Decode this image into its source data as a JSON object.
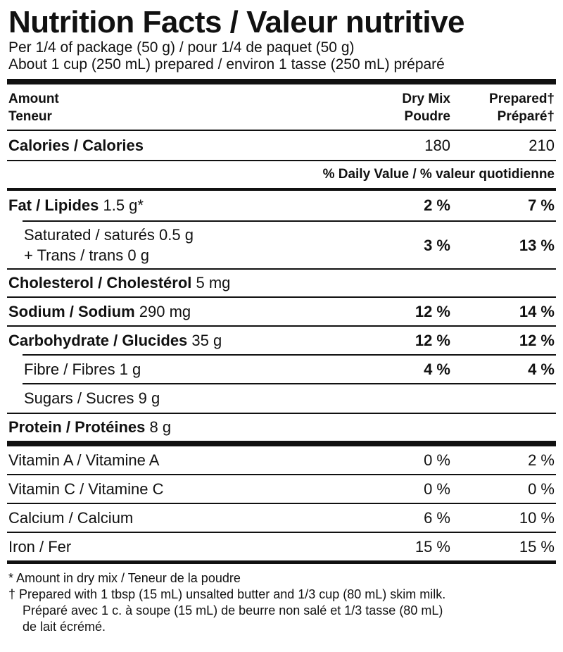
{
  "title": "Nutrition Facts / Valeur nutritive",
  "serving": {
    "line1": "Per 1/4 of package (50 g) / pour 1/4 de paquet (50 g)",
    "line2": "About 1 cup (250 mL) prepared / environ 1 tasse (250 mL) préparé"
  },
  "header": {
    "amount_en": "Amount",
    "amount_fr": "Teneur",
    "col1_en": "Dry Mix",
    "col1_fr": "Poudre",
    "col2_en": "Prepared†",
    "col2_fr": "Préparé†"
  },
  "calories": {
    "label": "Calories / Calories",
    "dry": "180",
    "prepared": "210"
  },
  "daily_value_header": "% Daily Value / % valeur quotidienne",
  "nutrients": {
    "fat": {
      "label": "Fat / Lipides",
      "amount": " 1.5 g*",
      "dry": "2 %",
      "prepared": "7 %"
    },
    "saturated": {
      "label1": "Saturated / saturés 0.5 g",
      "label2": "+ Trans / trans 0 g",
      "dry": "3 %",
      "prepared": "13 %"
    },
    "cholesterol": {
      "label": "Cholesterol / Cholestérol",
      "amount": " 5 mg"
    },
    "sodium": {
      "label": "Sodium / Sodium",
      "amount": " 290 mg",
      "dry": "12 %",
      "prepared": "14 %"
    },
    "carbohydrate": {
      "label": "Carbohydrate / Glucides",
      "amount": " 35 g",
      "dry": "12 %",
      "prepared": "12 %"
    },
    "fibre": {
      "label": "Fibre / Fibres 1 g",
      "dry": "4 %",
      "prepared": "4 %"
    },
    "sugars": {
      "label": "Sugars / Sucres 9 g"
    },
    "protein": {
      "label": "Protein / Protéines",
      "amount": " 8 g"
    }
  },
  "vitamins": {
    "vitamin_a": {
      "label": "Vitamin A / Vitamine A",
      "dry": "0 %",
      "prepared": "2 %"
    },
    "vitamin_c": {
      "label": "Vitamin C / Vitamine C",
      "dry": "0 %",
      "prepared": "0 %"
    },
    "calcium": {
      "label": "Calcium / Calcium",
      "dry": "6 %",
      "prepared": "10 %"
    },
    "iron": {
      "label": "Iron / Fer",
      "dry": "15 %",
      "prepared": "15 %"
    }
  },
  "footnotes": {
    "asterisk": "* Amount in dry mix / Teneur de la poudre",
    "dagger1": "† Prepared with 1 tbsp (15 mL) unsalted butter and 1/3 cup (80 mL) skim milk.",
    "dagger2": "Préparé avec 1 c. à soupe (15 mL) de beurre non salé et 1/3 tasse (80 mL)",
    "dagger3": "de lait écrémé."
  }
}
